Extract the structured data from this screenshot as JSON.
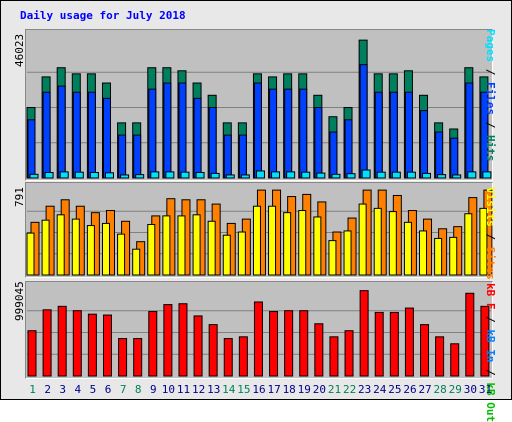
{
  "title": "Daily usage for July 2018",
  "colors": {
    "hits": "#007f5f",
    "files": "#0040ff",
    "pages": "#00e0ff",
    "visits": "#ffff00",
    "sites": "#ff8000",
    "kb_in": "#ff0000",
    "kb_out": "#00c000",
    "kb_f": "#0080ff",
    "weekend_day": "#00805c",
    "weekday_day": "#00008b"
  },
  "legends": {
    "top": [
      "Pages",
      "Files",
      "Hits"
    ],
    "middle": [
      "Visits",
      "Sites"
    ],
    "bottom": [
      "kB F",
      "kB In",
      "kB Out"
    ]
  },
  "chart_data": [
    {
      "type": "bar",
      "panel": "hits",
      "max_label": "46023",
      "ylim": [
        0,
        46023
      ],
      "categories": [
        "1",
        "2",
        "3",
        "4",
        "5",
        "6",
        "7",
        "8",
        "9",
        "10",
        "11",
        "12",
        "13",
        "14",
        "15",
        "16",
        "17",
        "18",
        "19",
        "20",
        "21",
        "22",
        "23",
        "24",
        "25",
        "26",
        "27",
        "28",
        "29",
        "30",
        "31"
      ],
      "series": [
        {
          "name": "Hits",
          "values": [
            23000,
            33000,
            36000,
            34000,
            34000,
            31000,
            18000,
            18000,
            36000,
            36000,
            35000,
            31000,
            27000,
            18000,
            18000,
            34000,
            33000,
            34000,
            34000,
            27000,
            20000,
            23000,
            45000,
            34000,
            34000,
            35000,
            27000,
            18000,
            16000,
            36000,
            33000
          ]
        },
        {
          "name": "Files",
          "values": [
            19000,
            28000,
            30000,
            28000,
            28000,
            26000,
            14000,
            14000,
            29000,
            31000,
            31000,
            26000,
            23000,
            14000,
            14000,
            31000,
            29000,
            29000,
            29000,
            23000,
            15000,
            19000,
            37000,
            28000,
            28000,
            28000,
            22000,
            15000,
            13000,
            31000,
            28000
          ]
        },
        {
          "name": "Pages",
          "values": [
            1200,
            1800,
            2000,
            1900,
            1800,
            1700,
            1000,
            1100,
            2000,
            2000,
            1900,
            1800,
            1500,
            1000,
            1000,
            2300,
            2000,
            2000,
            1900,
            1600,
            1200,
            1400,
            2600,
            1900,
            1900,
            1900,
            1500,
            1100,
            1000,
            2000,
            2000
          ]
        }
      ]
    },
    {
      "type": "bar",
      "panel": "visits",
      "max_label": "791",
      "ylim": [
        0,
        791
      ],
      "categories": [
        "1",
        "2",
        "3",
        "4",
        "5",
        "6",
        "7",
        "8",
        "9",
        "10",
        "11",
        "12",
        "13",
        "14",
        "15",
        "16",
        "17",
        "18",
        "19",
        "20",
        "21",
        "22",
        "23",
        "24",
        "25",
        "26",
        "27",
        "28",
        "29",
        "30",
        "31"
      ],
      "series": [
        {
          "name": "Sites",
          "values": [
            490,
            640,
            700,
            640,
            580,
            600,
            500,
            310,
            550,
            710,
            700,
            700,
            660,
            480,
            520,
            790,
            790,
            730,
            750,
            680,
            400,
            530,
            790,
            790,
            740,
            600,
            520,
            430,
            450,
            720,
            790
          ]
        },
        {
          "name": "Visits",
          "values": [
            390,
            510,
            560,
            520,
            460,
            480,
            380,
            240,
            470,
            550,
            550,
            560,
            500,
            370,
            400,
            640,
            640,
            580,
            600,
            540,
            320,
            410,
            660,
            620,
            590,
            490,
            410,
            340,
            350,
            570,
            620
          ]
        }
      ]
    },
    {
      "type": "bar",
      "panel": "kbytes",
      "max_label": "999045",
      "ylim": [
        0,
        999045
      ],
      "categories": [
        "1",
        "2",
        "3",
        "4",
        "5",
        "6",
        "7",
        "8",
        "9",
        "10",
        "11",
        "12",
        "13",
        "14",
        "15",
        "16",
        "17",
        "18",
        "19",
        "20",
        "21",
        "22",
        "23",
        "24",
        "25",
        "26",
        "27",
        "28",
        "29",
        "30",
        "31"
      ],
      "series": [
        {
          "name": "kB F",
          "values": [
            520000,
            760000,
            800000,
            750000,
            710000,
            700000,
            430000,
            430000,
            740000,
            820000,
            830000,
            690000,
            590000,
            430000,
            450000,
            850000,
            740000,
            750000,
            750000,
            600000,
            450000,
            520000,
            980000,
            730000,
            730000,
            780000,
            590000,
            450000,
            370000,
            950000,
            800000
          ]
        }
      ]
    }
  ]
}
